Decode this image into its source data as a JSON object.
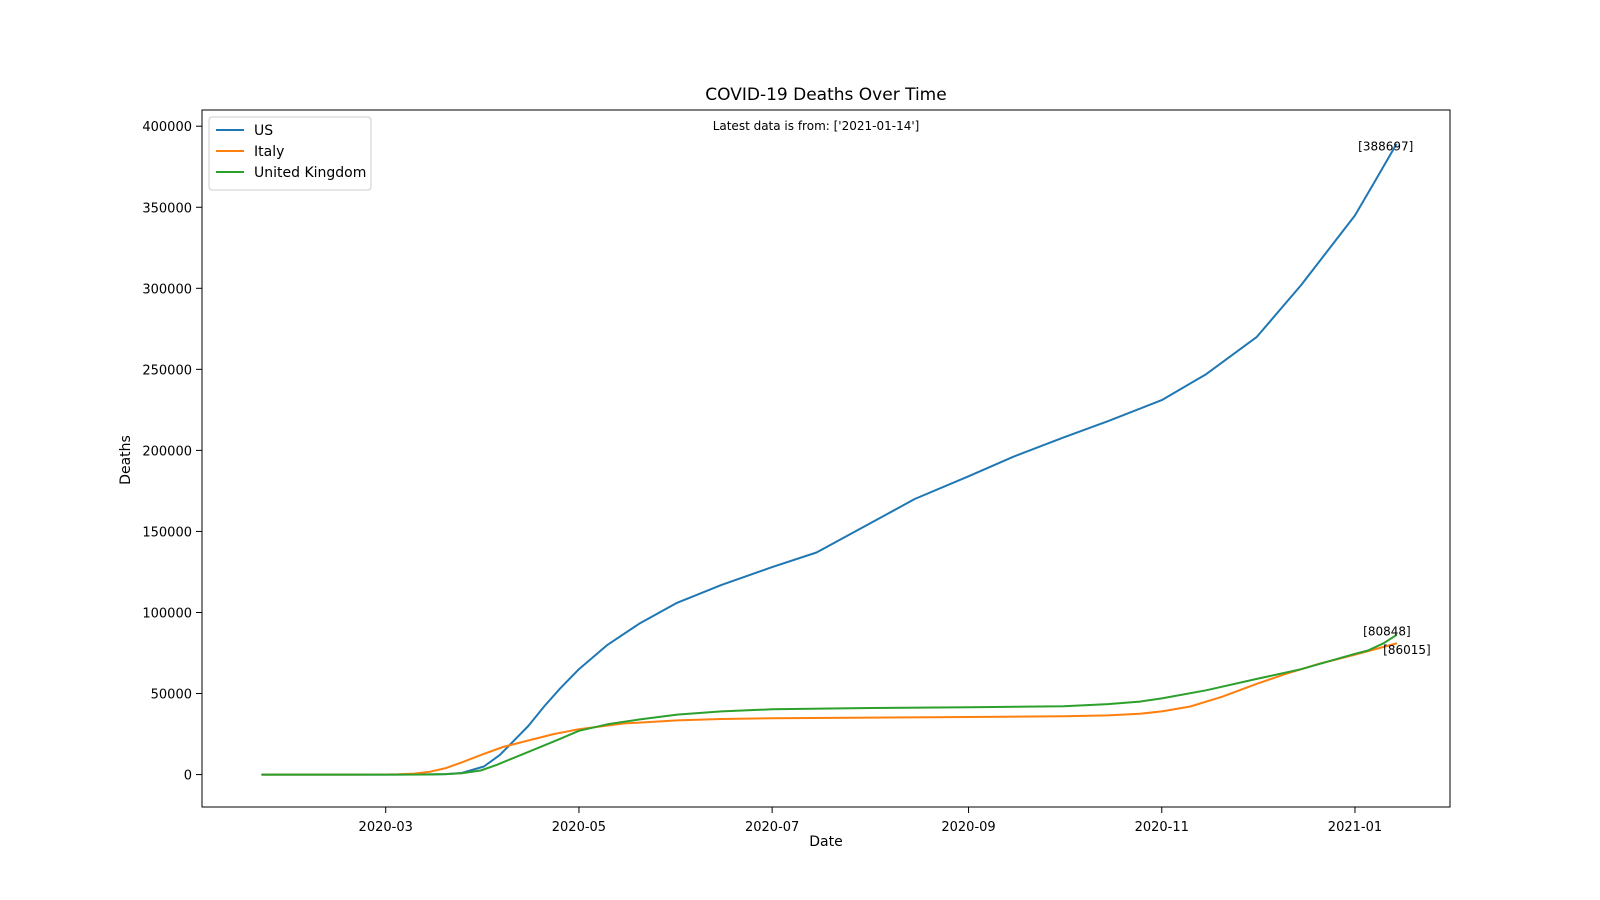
{
  "chart_data": {
    "type": "line",
    "title": "COVID-19 Deaths Over Time",
    "annotation": "Latest data is from: ['2021-01-14']",
    "xlabel": "Date",
    "ylabel": "Deaths",
    "xlim": [
      "2020-01-03",
      "2021-01-31"
    ],
    "ylim": [
      -20000,
      410000
    ],
    "x_ticks": [
      {
        "date": "2020-03-01",
        "label": "2020-03"
      },
      {
        "date": "2020-05-01",
        "label": "2020-05"
      },
      {
        "date": "2020-07-01",
        "label": "2020-07"
      },
      {
        "date": "2020-09-01",
        "label": "2020-09"
      },
      {
        "date": "2020-11-01",
        "label": "2020-11"
      },
      {
        "date": "2021-01-01",
        "label": "2021-01"
      }
    ],
    "y_ticks": [
      0,
      50000,
      100000,
      150000,
      200000,
      250000,
      300000,
      350000,
      400000
    ],
    "legend_position": "top-left",
    "grid": false,
    "series": [
      {
        "name": "US",
        "color": "#1f77b4",
        "end_label": "[388697]",
        "points": [
          [
            "2020-01-22",
            0
          ],
          [
            "2020-02-29",
            1
          ],
          [
            "2020-03-10",
            30
          ],
          [
            "2020-03-20",
            300
          ],
          [
            "2020-03-25",
            1000
          ],
          [
            "2020-04-01",
            5000
          ],
          [
            "2020-04-06",
            12000
          ],
          [
            "2020-04-10",
            20000
          ],
          [
            "2020-04-15",
            30000
          ],
          [
            "2020-04-20",
            42000
          ],
          [
            "2020-04-25",
            53000
          ],
          [
            "2020-05-01",
            65000
          ],
          [
            "2020-05-10",
            80000
          ],
          [
            "2020-05-20",
            93000
          ],
          [
            "2020-06-01",
            106000
          ],
          [
            "2020-06-15",
            117000
          ],
          [
            "2020-07-01",
            128000
          ],
          [
            "2020-07-15",
            137000
          ],
          [
            "2020-08-01",
            155000
          ],
          [
            "2020-08-15",
            170000
          ],
          [
            "2020-09-01",
            184000
          ],
          [
            "2020-09-15",
            196000
          ],
          [
            "2020-10-01",
            208000
          ],
          [
            "2020-10-15",
            218000
          ],
          [
            "2020-11-01",
            231000
          ],
          [
            "2020-11-15",
            247000
          ],
          [
            "2020-12-01",
            270000
          ],
          [
            "2020-12-15",
            302000
          ],
          [
            "2021-01-01",
            345000
          ],
          [
            "2021-01-07",
            365000
          ],
          [
            "2021-01-14",
            388697
          ]
        ]
      },
      {
        "name": "Italy",
        "color": "#ff7f0e",
        "end_label": "[80848]",
        "points": [
          [
            "2020-01-22",
            0
          ],
          [
            "2020-02-20",
            0
          ],
          [
            "2020-03-01",
            30
          ],
          [
            "2020-03-05",
            150
          ],
          [
            "2020-03-10",
            630
          ],
          [
            "2020-03-15",
            1800
          ],
          [
            "2020-03-20",
            4000
          ],
          [
            "2020-03-25",
            7500
          ],
          [
            "2020-03-31",
            12000
          ],
          [
            "2020-04-07",
            17000
          ],
          [
            "2020-04-15",
            21000
          ],
          [
            "2020-04-23",
            25000
          ],
          [
            "2020-05-01",
            28000
          ],
          [
            "2020-05-15",
            31500
          ],
          [
            "2020-06-01",
            33400
          ],
          [
            "2020-06-15",
            34300
          ],
          [
            "2020-07-01",
            34800
          ],
          [
            "2020-08-01",
            35150
          ],
          [
            "2020-09-01",
            35500
          ],
          [
            "2020-10-01",
            36000
          ],
          [
            "2020-10-15",
            36500
          ],
          [
            "2020-10-25",
            37500
          ],
          [
            "2020-11-01",
            39000
          ],
          [
            "2020-11-10",
            42000
          ],
          [
            "2020-11-20",
            48000
          ],
          [
            "2020-12-01",
            56000
          ],
          [
            "2020-12-10",
            62000
          ],
          [
            "2020-12-20",
            68000
          ],
          [
            "2021-01-01",
            74000
          ],
          [
            "2021-01-14",
            80848
          ]
        ]
      },
      {
        "name": "United Kingdom",
        "color": "#2ca02c",
        "end_label": "[86015]",
        "points": [
          [
            "2020-01-22",
            0
          ],
          [
            "2020-03-05",
            1
          ],
          [
            "2020-03-15",
            50
          ],
          [
            "2020-03-20",
            300
          ],
          [
            "2020-03-25",
            800
          ],
          [
            "2020-03-31",
            2500
          ],
          [
            "2020-04-05",
            6000
          ],
          [
            "2020-04-10",
            10000
          ],
          [
            "2020-04-15",
            14000
          ],
          [
            "2020-04-20",
            18000
          ],
          [
            "2020-04-25",
            22000
          ],
          [
            "2020-05-01",
            27000
          ],
          [
            "2020-05-10",
            31000
          ],
          [
            "2020-05-20",
            34000
          ],
          [
            "2020-06-01",
            37000
          ],
          [
            "2020-06-15",
            39000
          ],
          [
            "2020-07-01",
            40300
          ],
          [
            "2020-08-01",
            41100
          ],
          [
            "2020-09-01",
            41500
          ],
          [
            "2020-10-01",
            42200
          ],
          [
            "2020-10-15",
            43500
          ],
          [
            "2020-10-25",
            45000
          ],
          [
            "2020-11-01",
            47000
          ],
          [
            "2020-11-15",
            52000
          ],
          [
            "2020-12-01",
            59000
          ],
          [
            "2020-12-15",
            65000
          ],
          [
            "2021-01-01",
            74500
          ],
          [
            "2021-01-05",
            76500
          ],
          [
            "2021-01-10",
            81000
          ],
          [
            "2021-01-14",
            86015
          ]
        ]
      }
    ]
  }
}
